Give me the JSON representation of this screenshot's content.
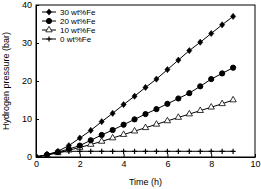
{
  "chart_data": {
    "type": "line",
    "x_label": "Time (h)",
    "y_label": "Hydrogen pressure (bar)",
    "x": [
      0,
      0.5,
      1,
      1.5,
      2,
      2.5,
      3,
      3.5,
      4,
      4.5,
      5,
      5.5,
      6,
      6.5,
      7,
      7.5,
      8,
      8.5,
      9
    ],
    "series": [
      {
        "name": "0 wt%Fe",
        "color": "#000000",
        "marker": "plus",
        "values": [
          0,
          0.6,
          1.2,
          1.5,
          1.5,
          1.5,
          1.5,
          1.5,
          1.5,
          1.5,
          1.5,
          1.5,
          1.5,
          1.5,
          1.5,
          1.5,
          1.5,
          1.5,
          1.5
        ]
      },
      {
        "name": "10 wt%Fe",
        "color": "#000000",
        "marker": "triangle-open",
        "values": [
          0,
          0.5,
          1.1,
          1.8,
          2.5,
          3.3,
          4.1,
          5.0,
          5.9,
          6.8,
          7.7,
          8.6,
          9.5,
          10.4,
          11.3,
          12.2,
          13.1,
          14.0,
          15.0
        ]
      },
      {
        "name": "20 wt%Fe",
        "color": "#000000",
        "marker": "circle",
        "values": [
          0,
          0.6,
          1.3,
          2.1,
          3.0,
          4.4,
          5.8,
          7.1,
          8.5,
          9.9,
          11.3,
          12.6,
          14.0,
          15.4,
          16.8,
          18.6,
          20.5,
          22.0,
          23.5
        ]
      },
      {
        "name": "30 wt%Fe",
        "color": "#000000",
        "marker": "diamond",
        "values": [
          0,
          0.6,
          1.5,
          3.0,
          5.0,
          7.0,
          9.3,
          11.5,
          13.8,
          16.0,
          18.3,
          20.5,
          23.0,
          25.5,
          28.0,
          30.2,
          32.5,
          34.8,
          37.0
        ]
      }
    ],
    "xlim": [
      0,
      10
    ],
    "xticks": [
      0,
      2,
      4,
      6,
      8,
      10
    ],
    "ylim": [
      0,
      40
    ],
    "yticks": [
      0,
      10,
      20,
      30,
      40
    ],
    "legend": "upper left"
  }
}
